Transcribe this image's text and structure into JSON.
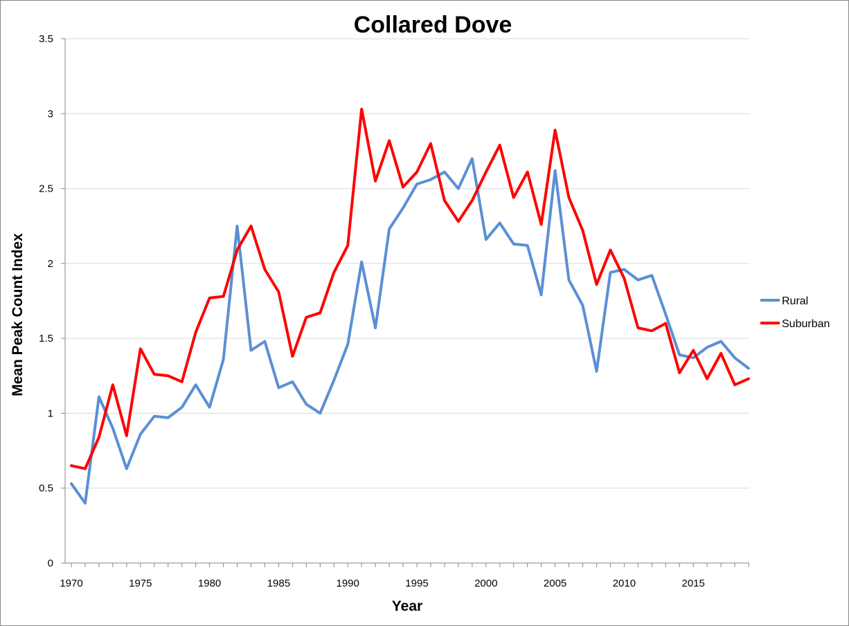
{
  "chart_data": {
    "type": "line",
    "title": "Collared Dove",
    "xlabel": "Year",
    "ylabel": "Mean Peak Count Index",
    "xlim": [
      1970,
      2019
    ],
    "ylim": [
      0,
      3.5
    ],
    "x_ticks": [
      "1970",
      "1975",
      "1980",
      "1985",
      "1990",
      "1995",
      "2000",
      "2005",
      "2010",
      "2015"
    ],
    "y_ticks": [
      "0",
      "0.5",
      "1",
      "1.5",
      "2",
      "2.5",
      "3",
      "3.5"
    ],
    "grid": "horizontal",
    "legend_position": "right",
    "x": [
      1970,
      1971,
      1972,
      1973,
      1974,
      1975,
      1976,
      1977,
      1978,
      1979,
      1980,
      1981,
      1982,
      1983,
      1984,
      1985,
      1986,
      1987,
      1988,
      1989,
      1990,
      1991,
      1992,
      1993,
      1994,
      1995,
      1996,
      1997,
      1998,
      1999,
      2000,
      2001,
      2002,
      2003,
      2004,
      2005,
      2006,
      2007,
      2008,
      2009,
      2010,
      2011,
      2012,
      2013,
      2014,
      2015,
      2016,
      2017,
      2018,
      2019
    ],
    "series": [
      {
        "name": "Rural",
        "color": "#5B8FD4",
        "values": [
          0.53,
          0.4,
          1.11,
          0.9,
          0.63,
          0.86,
          0.98,
          0.97,
          1.04,
          1.19,
          1.04,
          1.36,
          2.25,
          1.42,
          1.48,
          1.17,
          1.21,
          1.06,
          1.0,
          1.22,
          1.46,
          2.01,
          1.57,
          2.23,
          2.37,
          2.53,
          2.56,
          2.61,
          2.5,
          2.7,
          2.16,
          2.27,
          2.13,
          2.12,
          1.79,
          2.62,
          1.89,
          1.72,
          1.28,
          1.94,
          1.96,
          1.89,
          1.92,
          1.66,
          1.39,
          1.37,
          1.44,
          1.48,
          1.37,
          1.3
        ]
      },
      {
        "name": "Suburban",
        "color": "#FF0000",
        "values": [
          0.65,
          0.63,
          0.84,
          1.19,
          0.85,
          1.43,
          1.26,
          1.25,
          1.21,
          1.54,
          1.77,
          1.78,
          2.09,
          2.25,
          1.96,
          1.81,
          1.38,
          1.64,
          1.67,
          1.94,
          2.12,
          3.03,
          2.55,
          2.82,
          2.51,
          2.61,
          2.8,
          2.42,
          2.28,
          2.42,
          2.61,
          2.79,
          2.44,
          2.61,
          2.26,
          2.89,
          2.44,
          2.22,
          1.86,
          2.09,
          1.9,
          1.57,
          1.55,
          1.6,
          1.27,
          1.42,
          1.23,
          1.4,
          1.19,
          1.23
        ]
      }
    ]
  }
}
